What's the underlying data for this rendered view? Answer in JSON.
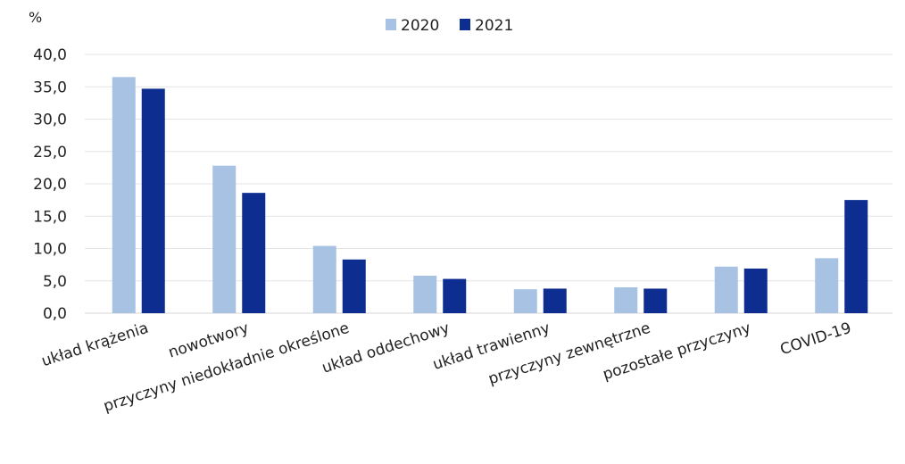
{
  "chart_data": {
    "type": "bar",
    "ylabel": "%",
    "ylim": [
      0,
      40
    ],
    "yticks": [
      "0,0",
      "5,0",
      "10,0",
      "15,0",
      "20,0",
      "25,0",
      "30,0",
      "35,0",
      "40,0"
    ],
    "ytick_values": [
      0,
      5,
      10,
      15,
      20,
      25,
      30,
      35,
      40
    ],
    "grid": true,
    "legend_position": "top-center",
    "categories": [
      "układ krążenia",
      "nowotwory",
      "przyczyny niedokładnie określone",
      "układ oddechowy",
      "układ trawienny",
      "przyczyny zewnętrzne",
      "pozostałe przyczyny",
      "COVID-19"
    ],
    "series": [
      {
        "name": "2020",
        "color": "#a7c2e3",
        "values": [
          36.5,
          22.8,
          10.4,
          5.8,
          3.7,
          4.0,
          7.2,
          8.5
        ]
      },
      {
        "name": "2021",
        "color": "#0d2d91",
        "values": [
          34.7,
          18.6,
          8.3,
          5.3,
          3.8,
          3.8,
          6.9,
          17.5
        ]
      }
    ]
  }
}
